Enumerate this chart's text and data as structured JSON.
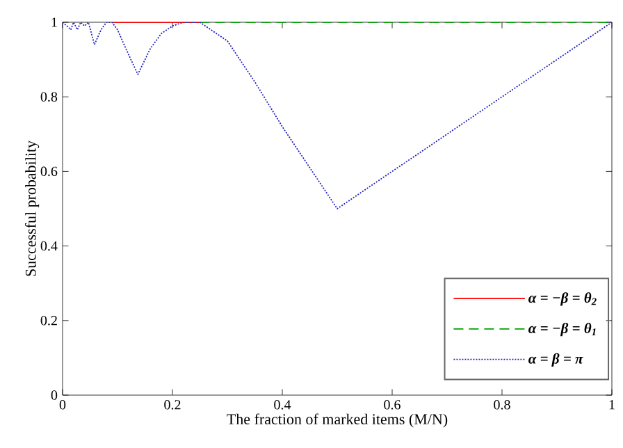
{
  "chart_data": {
    "type": "line",
    "xlabel": "The fraction of marked items (M/N)",
    "ylabel": "Successful probability",
    "xlim": [
      0,
      1
    ],
    "ylim": [
      0,
      1
    ],
    "xticks": [
      0,
      0.2,
      0.4,
      0.6,
      0.8,
      1
    ],
    "yticks": [
      0,
      0.2,
      0.4,
      0.6,
      0.8,
      1
    ],
    "grid": false,
    "legend": "bottom right",
    "marker": "none",
    "series": [
      {
        "name": "α = −β = θ$_{2}$",
        "color": "#ff0000",
        "line_style": "solid",
        "x": [
          0.09,
          0.25
        ],
        "values": [
          1,
          1
        ]
      },
      {
        "name": "α = −β = θ$_{1}$",
        "color": "#00a000",
        "line_style": "dashed",
        "x": [
          0.25,
          1
        ],
        "values": [
          1,
          1
        ]
      },
      {
        "name": "α = β = π",
        "color": "#2020c0",
        "line_style": "dotted",
        "x": [
          0,
          0.008,
          0.015,
          0.02,
          0.027,
          0.033,
          0.04,
          0.047,
          0.058,
          0.07,
          0.08,
          0.09,
          0.1,
          0.115,
          0.137,
          0.16,
          0.18,
          0.2,
          0.22,
          0.25,
          0.3,
          0.35,
          0.4,
          0.45,
          0.5,
          0.6,
          0.7,
          0.8,
          0.9,
          1
        ],
        "values": [
          1,
          0.99,
          0.98,
          1,
          0.98,
          1,
          0.99,
          1,
          0.94,
          0.98,
          1,
          1,
          0.98,
          0.93,
          0.86,
          0.93,
          0.97,
          0.99,
          1,
          1,
          0.95,
          0.84,
          0.72,
          0.61,
          0.5,
          0.6,
          0.7,
          0.8,
          0.9,
          1
        ]
      }
    ]
  }
}
